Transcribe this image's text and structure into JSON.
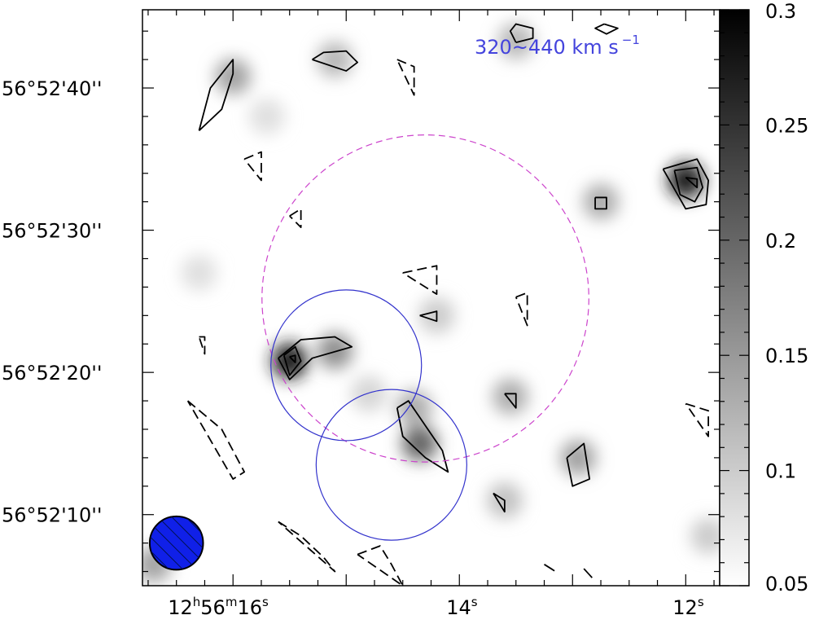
{
  "chart_data": {
    "type": "heatmap",
    "annotation": {
      "text": "320~440 km s",
      "superscript": "−1",
      "color": "#4444dd"
    },
    "x_axis": {
      "ticks": [
        {
          "hour": "12",
          "min": "56",
          "sec": "16",
          "value": 16
        },
        {
          "sec": "14",
          "value": 14
        },
        {
          "sec": "12",
          "value": 12
        }
      ],
      "unit_suffix": "s",
      "range": [
        16.8,
        11.7
      ],
      "direction": "decreasing"
    },
    "y_axis": {
      "ticks": [
        {
          "label": "56°52'40''",
          "value": 40
        },
        {
          "label": "56°52'30''",
          "value": 30
        },
        {
          "label": "56°52'20''",
          "value": 20
        },
        {
          "label": "56°52'10''",
          "value": 10
        }
      ],
      "range": [
        5.0,
        45.5
      ]
    },
    "colorbar": {
      "ticks": [
        "0.3",
        "0.25",
        "0.2",
        "0.15",
        "0.1",
        "0.05"
      ],
      "values": [
        0.3,
        0.25,
        0.2,
        0.15,
        0.1,
        0.05
      ],
      "range": [
        0.05,
        0.3
      ],
      "colormap": "gray_r"
    },
    "beam": {
      "x": 16.5,
      "y": 8.0,
      "width_arcsec": 3.3,
      "height_arcsec": 3.3,
      "color": "#1020e8",
      "hatched": true
    },
    "circles": [
      {
        "name": "large",
        "x": 14.3,
        "y": 25.2,
        "radius_arcsec": 11.5,
        "color": "#cc44cc",
        "style": "dashed"
      },
      {
        "name": "blue-1",
        "x": 15.0,
        "y": 20.5,
        "radius_arcsec": 5.3,
        "color": "#3333cc",
        "style": "solid"
      },
      {
        "name": "blue-2",
        "x": 14.6,
        "y": 13.5,
        "radius_arcsec": 5.3,
        "color": "#3333cc",
        "style": "solid"
      }
    ],
    "emission_blobs": [
      {
        "x": 15.5,
        "y": 20.8,
        "intensity": 0.27
      },
      {
        "x": 15.1,
        "y": 21.5,
        "intensity": 0.16
      },
      {
        "x": 14.35,
        "y": 15.0,
        "intensity": 0.2
      },
      {
        "x": 14.4,
        "y": 17.5,
        "intensity": 0.13
      },
      {
        "x": 12.0,
        "y": 33.5,
        "intensity": 0.27
      },
      {
        "x": 16.0,
        "y": 40.8,
        "intensity": 0.14
      },
      {
        "x": 15.1,
        "y": 42.0,
        "intensity": 0.12
      },
      {
        "x": 13.5,
        "y": 43.3,
        "intensity": 0.12
      },
      {
        "x": 12.75,
        "y": 32.0,
        "intensity": 0.13
      },
      {
        "x": 13.55,
        "y": 18.3,
        "intensity": 0.13
      },
      {
        "x": 12.95,
        "y": 14.0,
        "intensity": 0.14
      },
      {
        "x": 13.6,
        "y": 11.0,
        "intensity": 0.11
      },
      {
        "x": 14.2,
        "y": 24.0,
        "intensity": 0.1
      },
      {
        "x": 16.7,
        "y": 6.5,
        "intensity": 0.14
      },
      {
        "x": 14.8,
        "y": 18.5,
        "intensity": 0.09
      },
      {
        "x": 16.3,
        "y": 27.0,
        "intensity": 0.08
      },
      {
        "x": 11.8,
        "y": 8.5,
        "intensity": 0.1
      },
      {
        "x": 15.7,
        "y": 38.0,
        "intensity": 0.08
      }
    ],
    "contours": [
      {
        "style": "solid",
        "x": [
          16.3,
          16.1,
          16.0,
          16.0,
          16.2,
          16.3
        ],
        "y": [
          37.0,
          38.5,
          41.0,
          42.0,
          40.0,
          37.0
        ]
      },
      {
        "style": "solid",
        "x": [
          15.3,
          15.0,
          14.9,
          15.0,
          15.2,
          15.3
        ],
        "y": [
          42.0,
          41.2,
          41.8,
          42.6,
          42.5,
          42.0
        ]
      },
      {
        "style": "solid",
        "x": [
          13.5,
          13.35,
          13.35,
          13.5,
          13.55,
          13.5
        ],
        "y": [
          43.2,
          43.5,
          44.2,
          44.5,
          44.0,
          43.2
        ]
      },
      {
        "style": "solid",
        "x": [
          12.72,
          12.6,
          12.7,
          12.8,
          12.72
        ],
        "y": [
          44.5,
          44.2,
          43.8,
          44.2,
          44.5
        ]
      },
      {
        "style": "solid",
        "x": [
          12.2,
          11.9,
          11.8,
          11.82,
          12.0,
          12.2
        ],
        "y": [
          34.3,
          35.0,
          33.5,
          31.8,
          31.5,
          34.3
        ]
      },
      {
        "style": "solid",
        "x": [
          12.1,
          11.9,
          11.85,
          11.92,
          12.05,
          12.1
        ],
        "y": [
          34.2,
          34.4,
          33.0,
          32.0,
          32.5,
          34.2
        ]
      },
      {
        "style": "solid",
        "x": [
          12.0,
          11.9,
          11.9,
          12.0
        ],
        "y": [
          33.7,
          33.6,
          33.0,
          33.7
        ]
      },
      {
        "style": "solid",
        "x": [
          12.8,
          12.7,
          12.7,
          12.8,
          12.8
        ],
        "y": [
          32.3,
          32.3,
          31.5,
          31.5,
          32.3
        ]
      },
      {
        "style": "solid",
        "x": [
          15.6,
          15.4,
          15.1,
          14.95,
          15.3,
          15.5,
          15.6
        ],
        "y": [
          21.0,
          22.3,
          22.5,
          21.8,
          21.0,
          19.5,
          21.0
        ]
      },
      {
        "style": "solid",
        "x": [
          15.55,
          15.45,
          15.4,
          15.5,
          15.55
        ],
        "y": [
          21.2,
          21.8,
          20.8,
          19.8,
          21.2
        ]
      },
      {
        "style": "solid",
        "x": [
          15.5,
          15.45,
          15.45,
          15.5
        ],
        "y": [
          21.1,
          21.2,
          20.7,
          21.1
        ]
      },
      {
        "style": "solid",
        "x": [
          14.55,
          14.45,
          14.15,
          14.1,
          14.3,
          14.5,
          14.55
        ],
        "y": [
          17.5,
          18.0,
          14.5,
          13.0,
          14.0,
          15.5,
          17.5
        ]
      },
      {
        "style": "solid",
        "x": [
          14.35,
          14.2,
          14.2,
          14.35
        ],
        "y": [
          24.0,
          24.3,
          23.6,
          24.0
        ]
      },
      {
        "style": "solid",
        "x": [
          13.6,
          13.5,
          13.5,
          13.6
        ],
        "y": [
          18.5,
          18.5,
          17.5,
          18.5
        ]
      },
      {
        "style": "solid",
        "x": [
          13.05,
          12.9,
          12.85,
          13.0,
          13.05
        ],
        "y": [
          14.0,
          15.0,
          12.5,
          12.0,
          14.0
        ]
      },
      {
        "style": "solid",
        "x": [
          13.7,
          13.6,
          13.6,
          13.7
        ],
        "y": [
          11.5,
          11.0,
          10.2,
          11.5
        ]
      },
      {
        "style": "dashed",
        "x": [
          14.55,
          14.4,
          14.4,
          14.55
        ],
        "y": [
          42.0,
          41.5,
          39.5,
          42.0
        ]
      },
      {
        "style": "dashed",
        "x": [
          15.9,
          15.75,
          15.75,
          15.9
        ],
        "y": [
          35.0,
          35.5,
          33.5,
          35.0
        ]
      },
      {
        "style": "dashed",
        "x": [
          15.5,
          15.4,
          15.4,
          15.5
        ],
        "y": [
          31.0,
          31.5,
          30.2,
          31.0
        ]
      },
      {
        "style": "dashed",
        "x": [
          14.5,
          14.2,
          14.2,
          14.5
        ],
        "y": [
          27.0,
          27.5,
          25.5,
          27.0
        ]
      },
      {
        "style": "dashed",
        "x": [
          13.5,
          13.4,
          13.4,
          13.5
        ],
        "y": [
          25.3,
          25.6,
          23.3,
          25.3
        ]
      },
      {
        "style": "dashed",
        "x": [
          16.3,
          16.25,
          16.25,
          16.3
        ],
        "y": [
          22.5,
          22.5,
          21.3,
          22.5
        ]
      },
      {
        "style": "dashed",
        "x": [
          16.4,
          16.1,
          15.9,
          16.0,
          16.4
        ],
        "y": [
          18.0,
          16.0,
          13.0,
          12.5,
          18.0
        ]
      },
      {
        "style": "dashed",
        "x": [
          15.6,
          15.4,
          15.2,
          15.1,
          15.6
        ],
        "y": [
          9.5,
          8.5,
          7.0,
          6.0,
          9.5
        ]
      },
      {
        "style": "dashed",
        "x": [
          14.9,
          14.7,
          14.6,
          14.5,
          14.9
        ],
        "y": [
          7.2,
          7.8,
          6.5,
          5.0,
          7.2
        ]
      },
      {
        "style": "dashed",
        "x": [
          13.25,
          13.15,
          13.25
        ],
        "y": [
          6.5,
          6.0,
          6.5
        ]
      },
      {
        "style": "dashed",
        "x": [
          12.9,
          12.82,
          12.9
        ],
        "y": [
          6.2,
          5.5,
          6.2
        ]
      },
      {
        "style": "dashed",
        "x": [
          12.0,
          11.8,
          11.8,
          12.0
        ],
        "y": [
          17.8,
          17.3,
          15.5,
          17.8
        ]
      }
    ]
  }
}
